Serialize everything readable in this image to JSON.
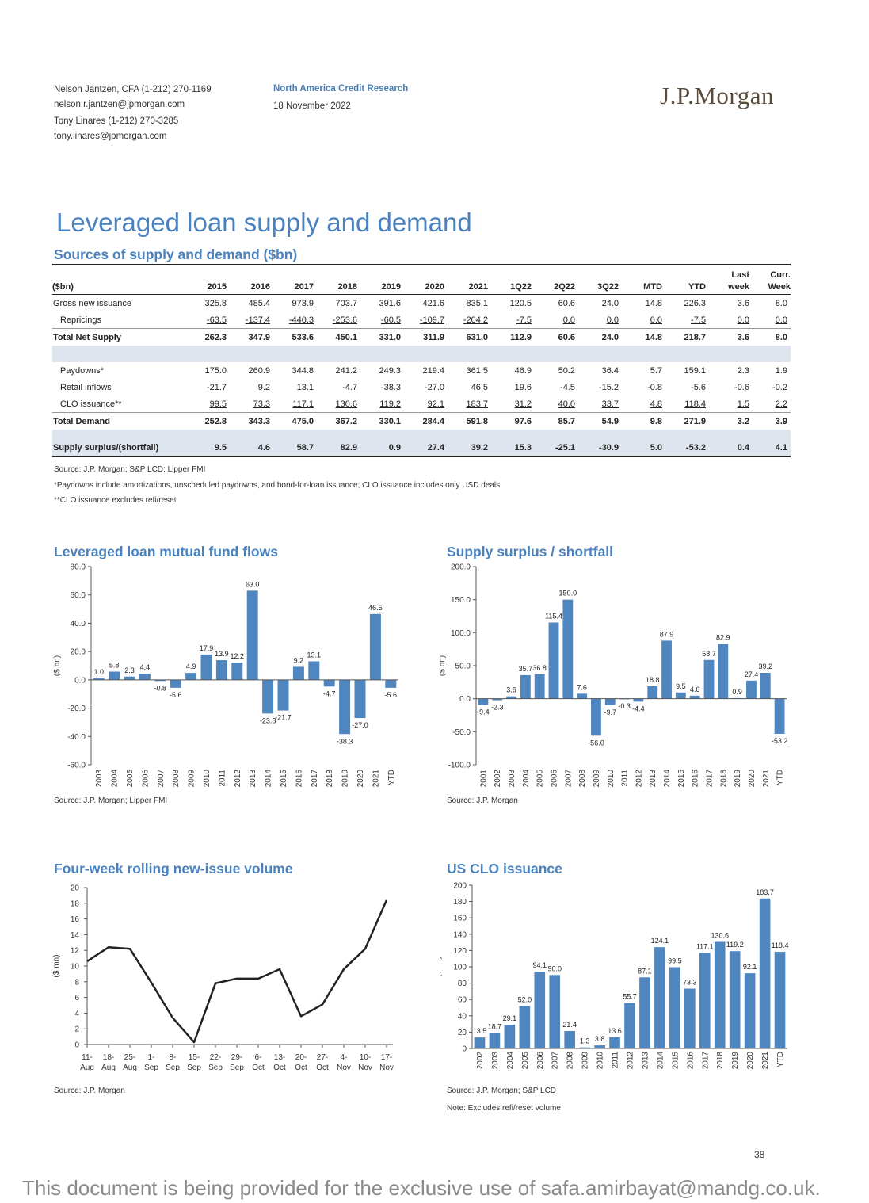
{
  "header": {
    "author1": "Nelson Jantzen, CFA (1-212) 270-1169",
    "email1": "nelson.r.jantzen@jpmorgan.com",
    "author2": "Tony Linares (1-212) 270-3285",
    "email2": "tony.linares@jpmorgan.com",
    "department": "North America Credit Research",
    "date": "18 November 2022",
    "logo": "J.P.Morgan"
  },
  "page_title": "Leveraged loan supply and demand",
  "table": {
    "title": "Sources of supply and demand ($bn)",
    "header_top": [
      "",
      "",
      "",
      "",
      "",
      "",
      "",
      "",
      "",
      "",
      "",
      "",
      "",
      "Last",
      "Curr."
    ],
    "columns": [
      "($bn)",
      "2015",
      "2016",
      "2017",
      "2018",
      "2019",
      "2020",
      "2021",
      "1Q22",
      "2Q22",
      "3Q22",
      "MTD",
      "YTD",
      "week",
      "Week"
    ],
    "rows": [
      {
        "cells": [
          "Gross new issuance",
          "325.8",
          "485.4",
          "973.9",
          "703.7",
          "391.6",
          "421.6",
          "835.1",
          "120.5",
          "60.6",
          "24.0",
          "14.8",
          "226.3",
          "3.6",
          "8.0"
        ]
      },
      {
        "cells": [
          "Repricings",
          "-63.5",
          "-137.4",
          "-440.3",
          "-253.6",
          "-60.5",
          "-109.7",
          "-204.2",
          "-7.5",
          "0.0",
          "0.0",
          "0.0",
          "-7.5",
          "0.0",
          "0.0"
        ]
      },
      {
        "cells": [
          "Total Net Supply",
          "262.3",
          "347.9",
          "533.6",
          "450.1",
          "331.0",
          "311.9",
          "631.0",
          "112.9",
          "60.6",
          "24.0",
          "14.8",
          "218.7",
          "3.6",
          "8.0"
        ]
      },
      {
        "cells": [
          "",
          "",
          "",
          "",
          "",
          "",
          "",
          "",
          "",
          "",
          "",
          "",
          "",
          "",
          ""
        ]
      },
      {
        "cells": [
          "Paydowns*",
          "175.0",
          "260.9",
          "344.8",
          "241.2",
          "249.3",
          "219.4",
          "361.5",
          "46.9",
          "50.2",
          "36.4",
          "5.7",
          "159.1",
          "2.3",
          "1.9"
        ]
      },
      {
        "cells": [
          "Retail inflows",
          "-21.7",
          "9.2",
          "13.1",
          "-4.7",
          "-38.3",
          "-27.0",
          "46.5",
          "19.6",
          "-4.5",
          "-15.2",
          "-0.8",
          "-5.6",
          "-0.6",
          "-0.2"
        ]
      },
      {
        "cells": [
          "CLO issuance**",
          "99.5",
          "73.3",
          "117.1",
          "130.6",
          "119.2",
          "92.1",
          "183.7",
          "31.2",
          "40.0",
          "33.7",
          "4.8",
          "118.4",
          "1.5",
          "2.2"
        ]
      },
      {
        "cells": [
          "Total Demand",
          "252.8",
          "343.3",
          "475.0",
          "367.2",
          "330.1",
          "284.4",
          "591.8",
          "97.6",
          "85.7",
          "54.9",
          "9.8",
          "271.9",
          "3.2",
          "3.9"
        ]
      },
      {
        "cells": [
          "",
          "",
          "",
          "",
          "",
          "",
          "",
          "",
          "",
          "",
          "",
          "",
          "",
          "",
          ""
        ]
      },
      {
        "cells": [
          "Supply surplus/(shortfall)",
          "9.5",
          "4.6",
          "58.7",
          "82.9",
          "0.9",
          "27.4",
          "39.2",
          "15.3",
          "-25.1",
          "-30.9",
          "5.0",
          "-53.2",
          "0.4",
          "4.1"
        ]
      }
    ],
    "source": "Source: J.P. Morgan; S&P LCD; Lipper FMI",
    "note1": "*Paydowns include amortizations, unscheduled paydowns, and bond-for-loan issuance; CLO issuance includes only USD deals",
    "note2": "**CLO issuance excludes refi/reset"
  },
  "chart_data": [
    {
      "type": "bar",
      "title": "Leveraged loan mutual fund flows",
      "ylabel": "($ bn)",
      "ylim": [
        -60,
        80
      ],
      "yticks": [
        "80.0",
        "60.0",
        "40.0",
        "20.0",
        "0.0",
        "-20.0",
        "-40.0",
        "-60.0"
      ],
      "categories": [
        "2003",
        "2004",
        "2005",
        "2006",
        "2007",
        "2008",
        "2009",
        "2010",
        "2011",
        "2012",
        "2013",
        "2014",
        "2015",
        "2016",
        "2017",
        "2018",
        "2019",
        "2020",
        "2021",
        "YTD"
      ],
      "values": [
        1.0,
        5.8,
        2.3,
        4.4,
        -0.8,
        -5.6,
        4.9,
        17.9,
        13.9,
        12.2,
        63.0,
        -23.8,
        -21.7,
        9.2,
        13.1,
        -4.7,
        -38.3,
        -27.0,
        46.5,
        -5.6
      ],
      "labels": [
        "1.0",
        "5.8",
        "2.3",
        "4.4",
        "-0.8",
        "-5.6",
        "4.9",
        "17.9",
        "13.9",
        "12.2",
        "63.0",
        "-23.8",
        "-21.7",
        "9.2",
        "13.1",
        "-4.7",
        "-38.3",
        "-27.0",
        "46.5",
        "-5.6"
      ],
      "color": "#4f86c0",
      "source": "Source: J.P. Morgan; Lipper FMI"
    },
    {
      "type": "bar",
      "title": "Supply surplus / shortfall",
      "ylabel": "($ bn)",
      "ylim": [
        -100,
        200
      ],
      "yticks": [
        "200.0",
        "150.0",
        "100.0",
        "50.0",
        "0.0",
        "-50.0",
        "-100.0"
      ],
      "categories": [
        "2001",
        "2002",
        "2003",
        "2004",
        "2005",
        "2006",
        "2007",
        "2008",
        "2009",
        "2010",
        "2011",
        "2012",
        "2013",
        "2014",
        "2015",
        "2016",
        "2017",
        "2018",
        "2019",
        "2020",
        "2021",
        "YTD"
      ],
      "values": [
        -9.4,
        -2.3,
        3.6,
        35.7,
        36.8,
        115.4,
        150.0,
        7.6,
        -56.0,
        -9.7,
        -0.3,
        -4.4,
        18.8,
        87.9,
        9.5,
        4.6,
        58.7,
        82.9,
        0.9,
        27.4,
        39.2,
        -53.2
      ],
      "labels": [
        "-9.4",
        "-2.3",
        "3.6",
        "35.7",
        "36.8",
        "115.4",
        "150.0",
        "7.6",
        "-56.0",
        "-9.7",
        "-0.3",
        "-4.4",
        "18.8",
        "87.9",
        "9.5",
        "4.6",
        "58.7",
        "82.9",
        "0.9",
        "27.4",
        "39.2",
        "-53.2"
      ],
      "color": "#4f86c0",
      "source": "Source: J.P. Morgan"
    },
    {
      "type": "line",
      "title": "Four-week rolling new-issue volume",
      "ylabel": "($ mn)",
      "ylim": [
        0,
        20
      ],
      "yticks": [
        "20",
        "18",
        "16",
        "14",
        "12",
        "10",
        "8",
        "6",
        "4",
        "2",
        "0"
      ],
      "categories": [
        "11-Aug",
        "18-Aug",
        "25-Aug",
        "1-Sep",
        "8-Sep",
        "15-Sep",
        "22-Sep",
        "29-Sep",
        "6-Oct",
        "13-Oct",
        "20-Oct",
        "27-Oct",
        "4-Nov",
        "10-Nov",
        "17-Nov"
      ],
      "tick_top": [
        "11-",
        "18-",
        "25-",
        "1-",
        "8-",
        "15-",
        "22-",
        "29-",
        "6-",
        "13-",
        "20-",
        "27-",
        "4-",
        "10-",
        "17-"
      ],
      "tick_bottom": [
        "Aug",
        "Aug",
        "Aug",
        "Sep",
        "Sep",
        "Sep",
        "Sep",
        "Sep",
        "Oct",
        "Oct",
        "Oct",
        "Oct",
        "Nov",
        "Nov",
        "Nov"
      ],
      "values": [
        10.6,
        12.4,
        12.2,
        7.9,
        3.4,
        0.3,
        7.8,
        8.4,
        8.4,
        9.6,
        3.6,
        5.1,
        9.6,
        12.2,
        18.4
      ],
      "color": "#222222",
      "source": "Source: J.P. Morgan"
    },
    {
      "type": "bar",
      "title": "US CLO issuance",
      "ylabel": "($ bn)",
      "ylim": [
        0,
        200
      ],
      "yticks": [
        "200",
        "180",
        "160",
        "140",
        "120",
        "100",
        "80",
        "60",
        "40",
        "20",
        "0"
      ],
      "categories": [
        "2002",
        "2003",
        "2004",
        "2005",
        "2006",
        "2007",
        "2008",
        "2009",
        "2010",
        "2011",
        "2012",
        "2013",
        "2014",
        "2015",
        "2016",
        "2017",
        "2018",
        "2019",
        "2020",
        "2021",
        "YTD"
      ],
      "values": [
        13.5,
        18.7,
        29.1,
        52.0,
        94.1,
        90.0,
        21.4,
        1.3,
        3.8,
        13.6,
        55.7,
        87.1,
        124.1,
        99.5,
        73.3,
        117.1,
        130.6,
        119.2,
        92.1,
        183.7,
        118.4
      ],
      "labels": [
        "13.5",
        "18.7",
        "29.1",
        "52.0",
        "94.1",
        "90.0",
        "21.4",
        "1.3",
        "3.8",
        "13.6",
        "55.7",
        "87.1",
        "124.1",
        "99.5",
        "73.3",
        "117.1",
        "130.6",
        "119.2",
        "92.1",
        "183.7",
        "118.4"
      ],
      "color": "#4f86c0",
      "source": "Source: J.P. Morgan; S&P LCD",
      "note": "Note: Excludes refi/reset volume"
    }
  ],
  "page_number": "38",
  "watermark": "This document is being provided for the exclusive use of safa.amirbayat@mandg.co.uk."
}
